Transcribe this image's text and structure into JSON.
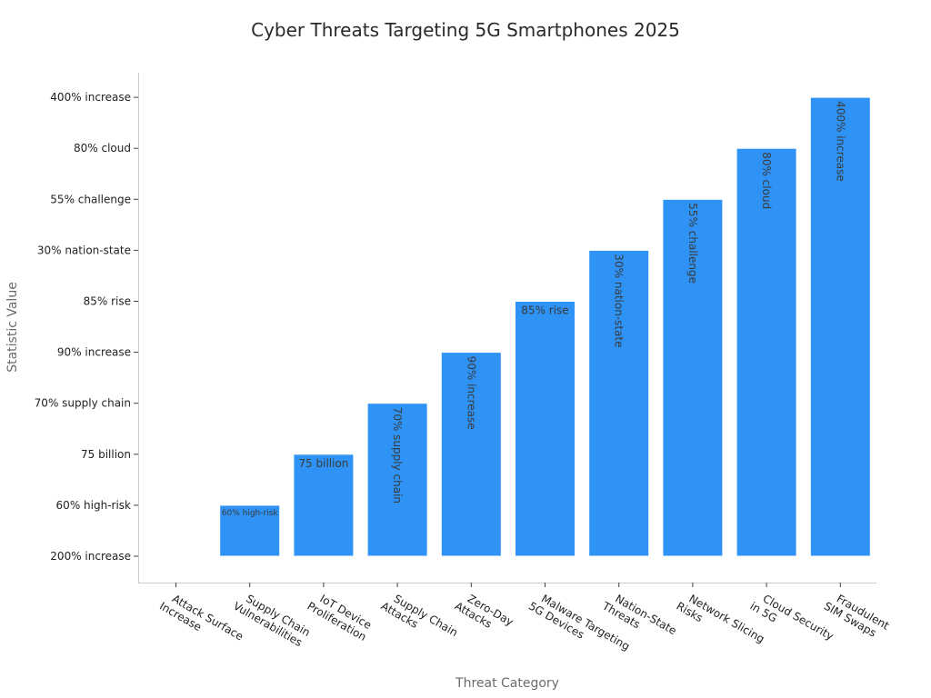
{
  "chart_data": {
    "type": "bar",
    "title": "Cyber Threats Targeting 5G Smartphones 2025",
    "xlabel": "Threat Category",
    "ylabel": "Statistic Value",
    "y_categories": [
      "200% increase",
      "60% high-risk",
      "75 billion",
      "70% supply chain",
      "90% increase",
      "85% rise",
      "30% nation-state",
      "55% challenge",
      "80% cloud",
      "400% increase"
    ],
    "categories": [
      "Attack Surface Increase",
      "Supply Chain Vulnerabilities",
      "IoT Device Proliferation",
      "Supply Chain Attacks",
      "Zero-Day Attacks",
      "Malware Targeting 5G Devices",
      "Nation-State Threats",
      "Network Slicing Risks",
      "Cloud Security in 5G",
      "Fraudulent SIM Swaps"
    ],
    "category_lines": [
      [
        "Attack Surface",
        "Increase"
      ],
      [
        "Supply Chain",
        "Vulnerabilities"
      ],
      [
        "IoT Device",
        "Proliferation"
      ],
      [
        "Supply Chain",
        "Attacks"
      ],
      [
        "Zero-Day",
        "Attacks"
      ],
      [
        "Malware Targeting",
        "5G Devices"
      ],
      [
        "Nation-State",
        "Threats"
      ],
      [
        "Network Slicing",
        "Risks"
      ],
      [
        "Cloud Security",
        "in 5G"
      ],
      [
        "Fraudulent",
        "SIM Swaps"
      ]
    ],
    "values": [
      "200% increase",
      "60% high-risk",
      "75 billion",
      "70% supply chain",
      "90% increase",
      "85% rise",
      "30% nation-state",
      "55% challenge",
      "80% cloud",
      "400% increase"
    ],
    "data_labels": [
      "",
      "60% high-risk",
      "75 billion",
      "70% supply chain",
      "90% increase",
      "85% rise",
      "30% nation-state",
      "55% challenge",
      "80% cloud",
      "400% increase"
    ],
    "data_label_orientation": [
      "none",
      "horizontal",
      "horizontal",
      "vertical",
      "vertical",
      "horizontal",
      "vertical",
      "vertical",
      "vertical",
      "vertical"
    ],
    "colors": {
      "bar": "#2e93f5",
      "bar_edge": "#ffffff",
      "axis": "#cccccc",
      "tick": "#444444"
    },
    "grid": false,
    "legend": "none"
  }
}
